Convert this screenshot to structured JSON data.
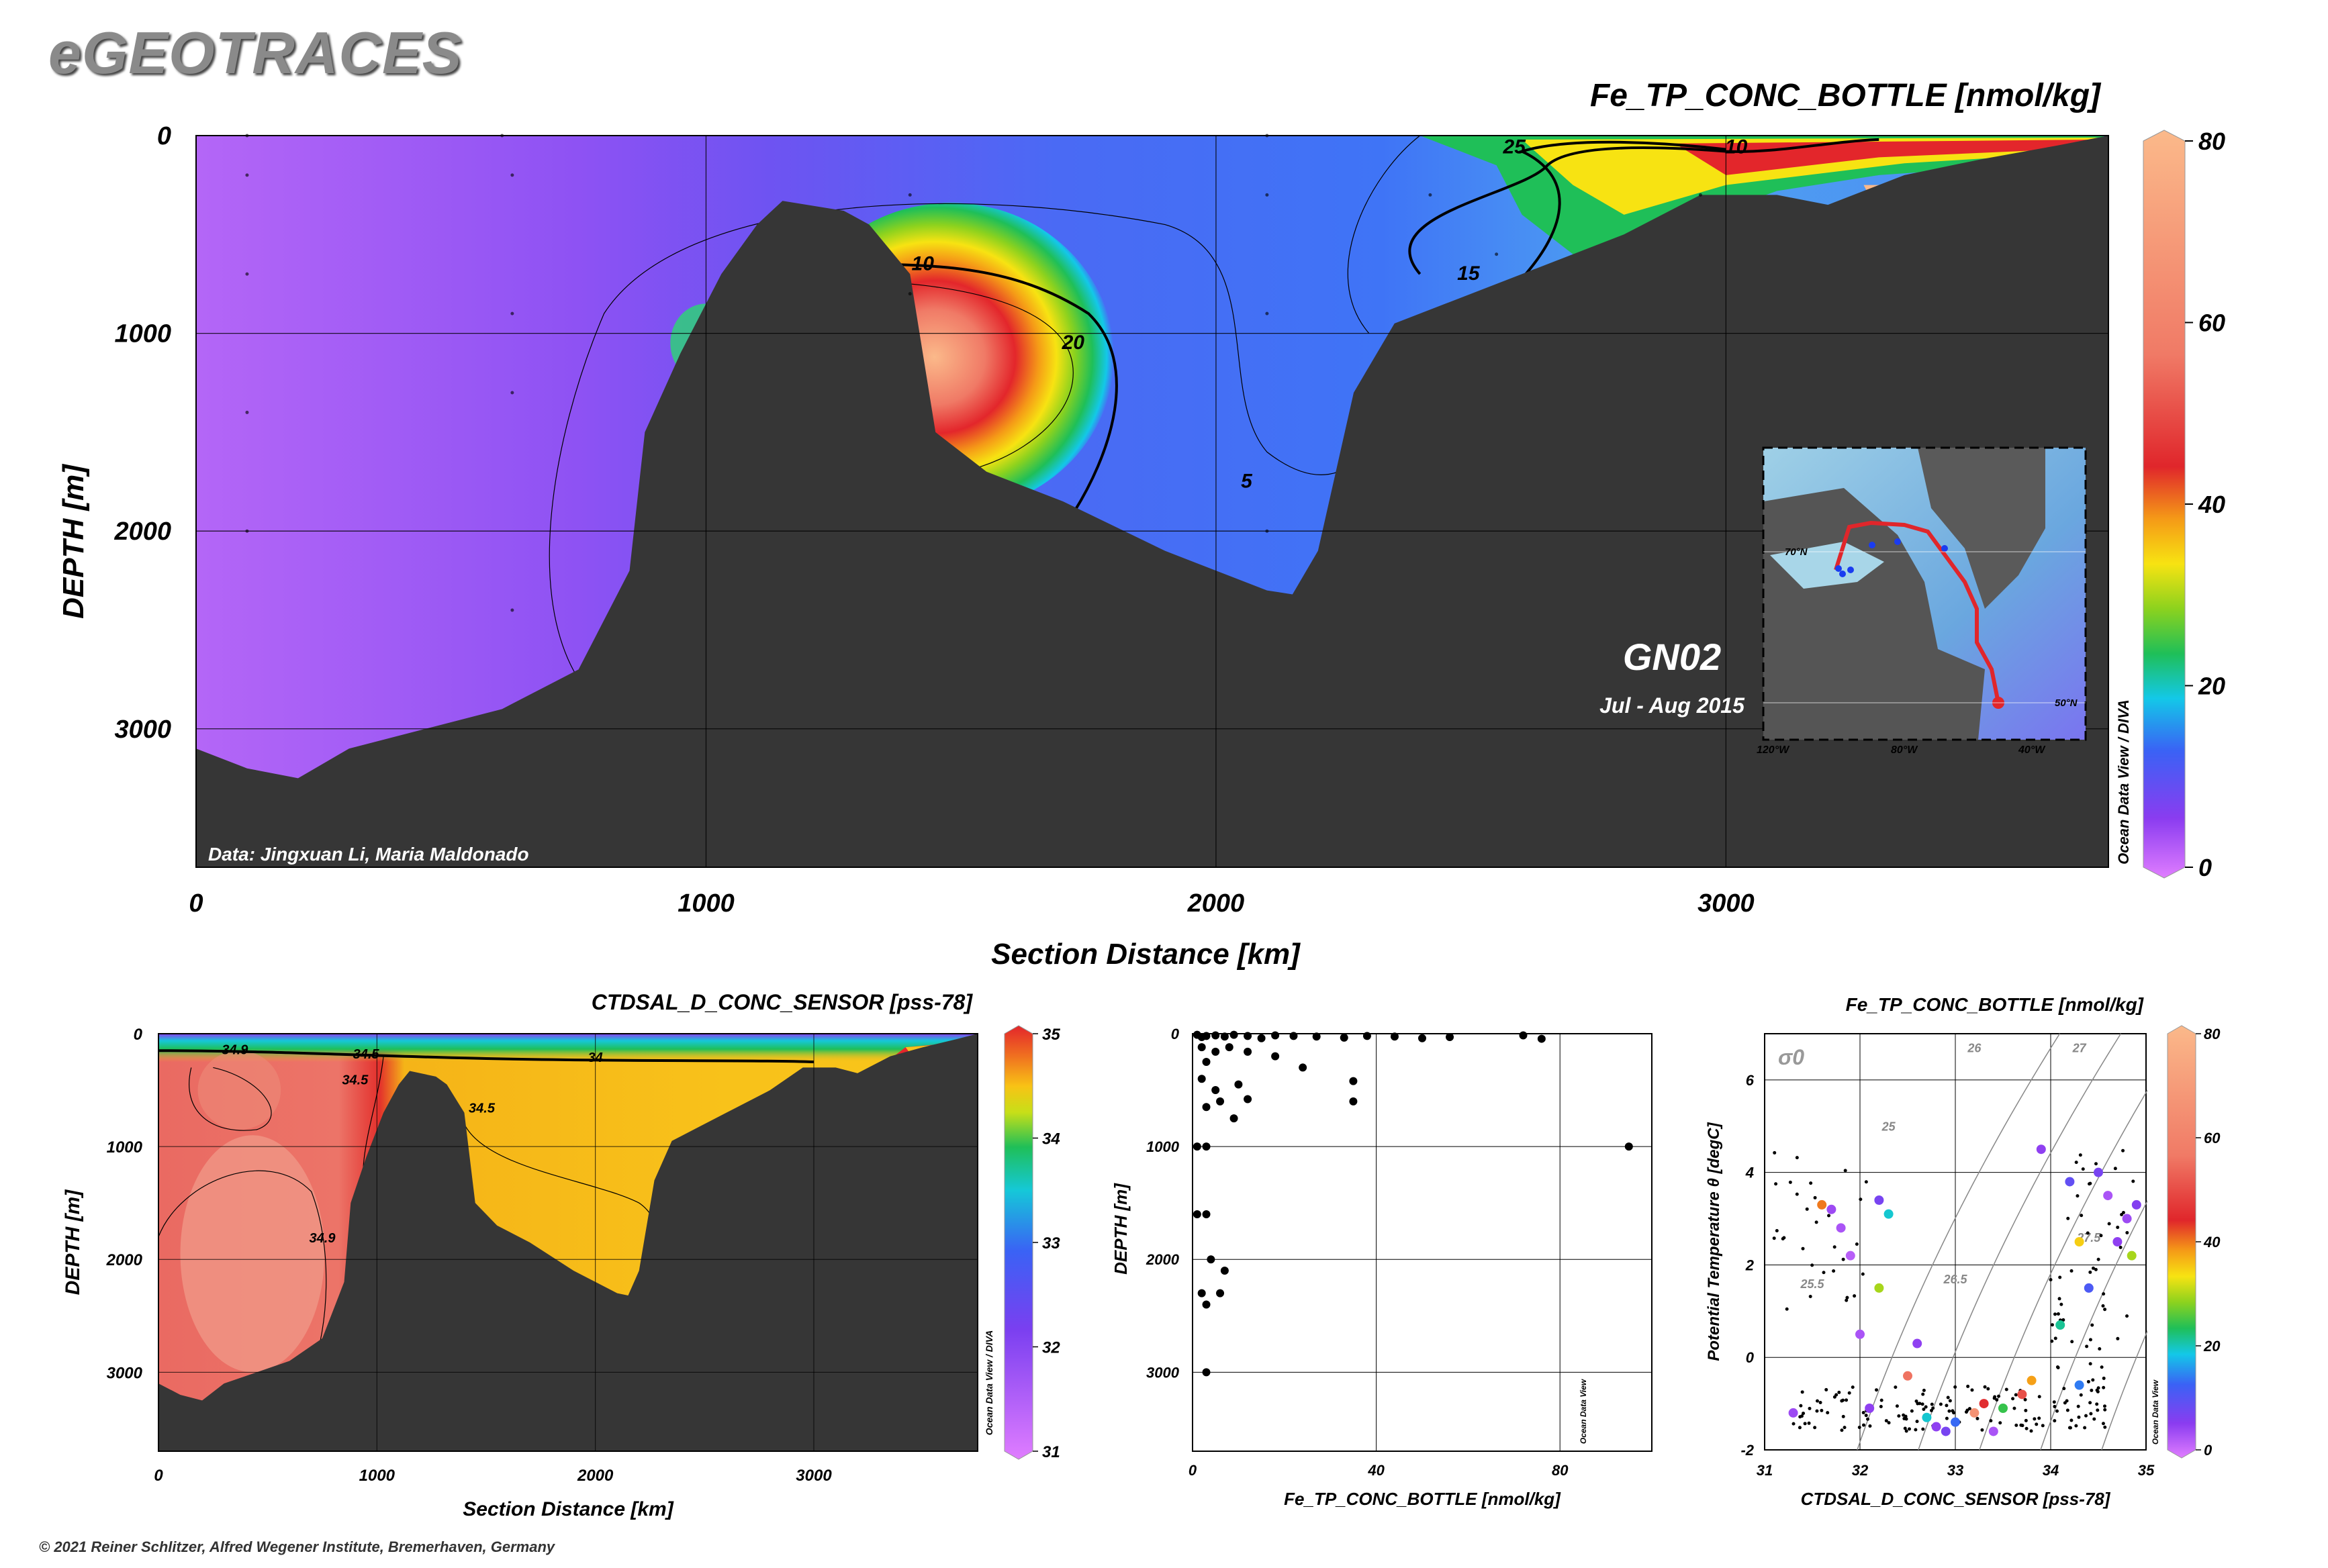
{
  "logo": "eGEOTRACES",
  "credit": "© 2021 Reiner Schlitzer, Alfred Wegener Institute, Bremerhaven, Germany",
  "main": {
    "var_title": "Fe_TP_CONC_BOTTLE [nmol/kg]",
    "xlabel": "Section Distance [km]",
    "ylabel": "DEPTH [m]",
    "data_credit": "Data: Jingxuan Li, Maria Maldonado",
    "section_name": "GN02",
    "dates": "Jul - Aug 2015",
    "odv_label": "Ocean Data View / DIVA",
    "contour_labels": [
      "25",
      "10",
      "10",
      "20",
      "15",
      "5"
    ],
    "map": {
      "lat_labels": [
        "70°N",
        "50°N"
      ],
      "lon_labels": [
        "120°W",
        "80°W",
        "40°W"
      ]
    }
  },
  "sal": {
    "title": "CTDSAL_D_CONC_SENSOR [pss-78]",
    "xlabel": "Section Distance [km]",
    "ylabel": "DEPTH [m]",
    "odv_label": "Ocean Data View / DIVA",
    "contour_labels": [
      "34.9",
      "34.5",
      "34",
      "34.5",
      "34.9",
      "34.5"
    ]
  },
  "prof": {
    "xlabel": "Fe_TP_CONC_BOTTLE [nmol/kg]",
    "ylabel": "DEPTH [m]",
    "odv_label": "Ocean Data View"
  },
  "ts": {
    "title": "Fe_TP_CONC_BOTTLE [nmol/kg]",
    "xlabel": "CTDSAL_D_CONC_SENSOR [pss-78]",
    "ylabel": "Potential Temperature θ [degC]",
    "odv_label": "Ocean Data View",
    "sigma_label": "σ0",
    "isopycnal_labels": [
      "25",
      "26",
      "27",
      "25.5",
      "26.5",
      "27.5"
    ]
  },
  "chart_data": [
    {
      "type": "heatmap",
      "title": "Fe_TP_CONC_BOTTLE [nmol/kg]",
      "xlabel": "Section Distance [km]",
      "ylabel": "DEPTH [m]",
      "xlim": [
        0,
        3750
      ],
      "ylim": [
        3700,
        0
      ],
      "xticks": [
        0,
        1000,
        2000,
        3000
      ],
      "yticks": [
        0,
        1000,
        2000,
        3000
      ],
      "colorbar": {
        "range": [
          0,
          80
        ],
        "ticks": [
          0,
          20,
          40,
          60,
          80
        ]
      },
      "contour_levels": [
        5,
        10,
        15,
        20,
        25
      ],
      "bathymetry_km_m": [
        [
          0,
          3100
        ],
        [
          100,
          3200
        ],
        [
          200,
          3250
        ],
        [
          300,
          3100
        ],
        [
          450,
          3000
        ],
        [
          600,
          2900
        ],
        [
          750,
          2700
        ],
        [
          850,
          2200
        ],
        [
          880,
          1500
        ],
        [
          950,
          1100
        ],
        [
          1030,
          700
        ],
        [
          1100,
          450
        ],
        [
          1150,
          330
        ],
        [
          1270,
          380
        ],
        [
          1320,
          450
        ],
        [
          1400,
          700
        ],
        [
          1450,
          1500
        ],
        [
          1550,
          1700
        ],
        [
          1700,
          1850
        ],
        [
          1900,
          2100
        ],
        [
          2100,
          2300
        ],
        [
          2150,
          2320
        ],
        [
          2200,
          2100
        ],
        [
          2270,
          1300
        ],
        [
          2350,
          950
        ],
        [
          2450,
          850
        ],
        [
          2600,
          700
        ],
        [
          2800,
          500
        ],
        [
          2950,
          300
        ],
        [
          3100,
          300
        ],
        [
          3200,
          350
        ],
        [
          3350,
          200
        ],
        [
          3500,
          120
        ],
        [
          3650,
          50
        ],
        [
          3750,
          0
        ]
      ]
    },
    {
      "type": "heatmap",
      "title": "CTDSAL_D_CONC_SENSOR [pss-78]",
      "xlabel": "Section Distance [km]",
      "ylabel": "DEPTH [m]",
      "xlim": [
        0,
        3750
      ],
      "ylim": [
        3700,
        0
      ],
      "xticks": [
        0,
        1000,
        2000,
        3000
      ],
      "yticks": [
        0,
        1000,
        2000,
        3000
      ],
      "colorbar": {
        "range": [
          31,
          35
        ],
        "ticks": [
          31,
          32,
          33,
          34,
          35
        ]
      },
      "contour_levels": [
        34,
        34.5,
        34.9
      ]
    },
    {
      "type": "scatter",
      "xlabel": "Fe_TP_CONC_BOTTLE [nmol/kg]",
      "ylabel": "DEPTH [m]",
      "xlim": [
        0,
        100
      ],
      "ylim": [
        3700,
        0
      ],
      "xticks": [
        0,
        40,
        80
      ],
      "yticks": [
        0,
        1000,
        2000,
        3000
      ],
      "points": [
        [
          1,
          10
        ],
        [
          2,
          30
        ],
        [
          3,
          20
        ],
        [
          5,
          15
        ],
        [
          7,
          25
        ],
        [
          9,
          10
        ],
        [
          12,
          20
        ],
        [
          15,
          40
        ],
        [
          18,
          15
        ],
        [
          22,
          20
        ],
        [
          27,
          25
        ],
        [
          33,
          35
        ],
        [
          38,
          20
        ],
        [
          44,
          25
        ],
        [
          50,
          40
        ],
        [
          56,
          30
        ],
        [
          72,
          15
        ],
        [
          76,
          45
        ],
        [
          2,
          120
        ],
        [
          3,
          250
        ],
        [
          5,
          160
        ],
        [
          8,
          120
        ],
        [
          12,
          160
        ],
        [
          18,
          200
        ],
        [
          24,
          300
        ],
        [
          35,
          420
        ],
        [
          2,
          400
        ],
        [
          5,
          500
        ],
        [
          10,
          450
        ],
        [
          3,
          650
        ],
        [
          6,
          600
        ],
        [
          9,
          750
        ],
        [
          12,
          580
        ],
        [
          35,
          600
        ],
        [
          1,
          1000
        ],
        [
          3,
          1000
        ],
        [
          95,
          1000
        ],
        [
          1,
          1600
        ],
        [
          3,
          1600
        ],
        [
          4,
          2000
        ],
        [
          7,
          2100
        ],
        [
          2,
          2300
        ],
        [
          3,
          2400
        ],
        [
          6,
          2300
        ],
        [
          3,
          3000
        ]
      ]
    },
    {
      "type": "scatter",
      "title": "Fe_TP_CONC_BOTTLE [nmol/kg]",
      "xlabel": "CTDSAL_D_CONC_SENSOR [pss-78]",
      "ylabel": "Potential Temperature θ [degC]",
      "xlim": [
        31,
        35
      ],
      "ylim": [
        -2,
        7
      ],
      "xticks": [
        31,
        32,
        33,
        34,
        35
      ],
      "yticks": [
        -2,
        0,
        2,
        4,
        6
      ],
      "colorbar": {
        "range": [
          0,
          80
        ],
        "ticks": [
          0,
          20,
          40,
          60,
          80
        ]
      },
      "isopycnals_sigma0": [
        25,
        25.5,
        26,
        26.5,
        27,
        27.5
      ],
      "colored_points": [
        [
          31.6,
          3.3,
          40
        ],
        [
          31.7,
          3.2,
          5
        ],
        [
          31.8,
          2.8,
          4
        ],
        [
          31.9,
          2.2,
          3
        ],
        [
          32.2,
          1.5,
          30
        ],
        [
          32.3,
          3.1,
          20
        ],
        [
          32.2,
          3.4,
          8
        ],
        [
          32.5,
          -0.4,
          55
        ],
        [
          32.6,
          0.3,
          6
        ],
        [
          32.7,
          -1.3,
          20
        ],
        [
          32.8,
          -1.5,
          6
        ],
        [
          33.0,
          -1.4,
          14
        ],
        [
          33.2,
          -1.2,
          65
        ],
        [
          33.3,
          -1.0,
          45
        ],
        [
          33.5,
          -1.1,
          25
        ],
        [
          33.7,
          -0.8,
          50
        ],
        [
          33.8,
          -0.5,
          38
        ],
        [
          33.9,
          4.5,
          6
        ],
        [
          34.1,
          0.7,
          22
        ],
        [
          34.2,
          3.8,
          10
        ],
        [
          34.3,
          2.5,
          35
        ],
        [
          34.4,
          1.5,
          12
        ],
        [
          34.5,
          4.0,
          8
        ],
        [
          34.6,
          3.5,
          4
        ],
        [
          34.7,
          2.5,
          6
        ],
        [
          34.8,
          3.0,
          5
        ],
        [
          34.9,
          3.3,
          7
        ],
        [
          34.85,
          2.2,
          30
        ],
        [
          32.0,
          0.5,
          4
        ],
        [
          31.3,
          -1.2,
          5
        ],
        [
          32.1,
          -1.1,
          6
        ],
        [
          32.9,
          -1.6,
          8
        ],
        [
          33.4,
          -1.6,
          4
        ],
        [
          34.3,
          -0.6,
          15
        ]
      ]
    }
  ]
}
